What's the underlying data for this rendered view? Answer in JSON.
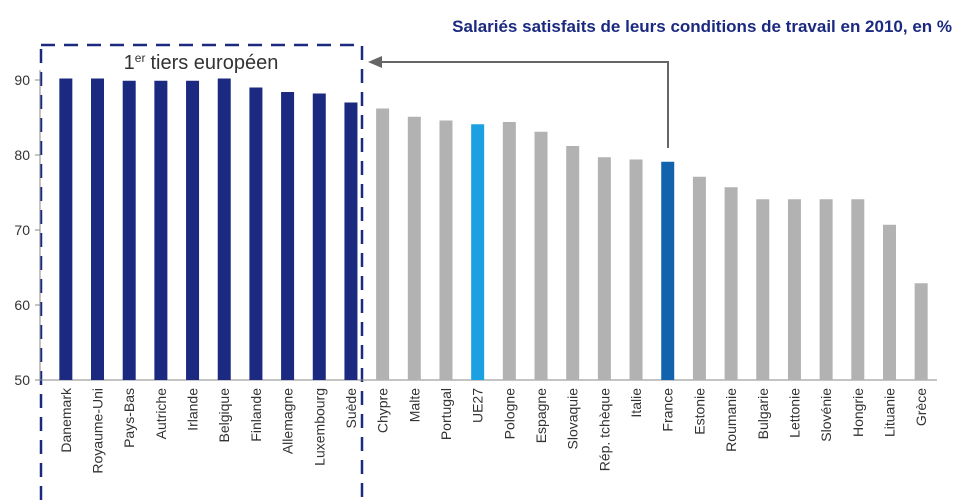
{
  "chart_data": {
    "type": "bar",
    "title": "Salariés satisfaits de leurs conditions de travail en 2010, en %",
    "annotation": {
      "main": "1",
      "superscript": "er",
      "rest": "tiers européen"
    },
    "categories": [
      "Danemark",
      "Royaume-Uni",
      "Pays-Bas",
      "Autriche",
      "Irlande",
      "Belgique",
      "Finlande",
      "Allemagne",
      "Luxembourg",
      "Suède",
      "Chypre",
      "Malte",
      "Portugal",
      "UE27",
      "Pologne",
      "Espagne",
      "Slovaquie",
      "Rép. tchèque",
      "Italie",
      "France",
      "Estonie",
      "Roumanie",
      "Bulgarie",
      "Lettonie",
      "Slovénie",
      "Hongrie",
      "Lituanie",
      "Grèce"
    ],
    "values": [
      90.2,
      90.2,
      89.9,
      89.9,
      89.9,
      90.2,
      89.0,
      88.4,
      88.2,
      87.0,
      86.2,
      85.1,
      84.6,
      84.1,
      84.4,
      83.1,
      81.2,
      79.7,
      79.4,
      79.1,
      77.1,
      75.7,
      74.1,
      74.1,
      74.1,
      74.1,
      70.7,
      62.9
    ],
    "colors": [
      "#1b2a80",
      "#1b2a80",
      "#1b2a80",
      "#1b2a80",
      "#1b2a80",
      "#1b2a80",
      "#1b2a80",
      "#1b2a80",
      "#1b2a80",
      "#1b2a80",
      "#b2b2b2",
      "#b2b2b2",
      "#b2b2b2",
      "#1ba1e2",
      "#b2b2b2",
      "#b2b2b2",
      "#b2b2b2",
      "#b2b2b2",
      "#b2b2b2",
      "#1263ad",
      "#b2b2b2",
      "#b2b2b2",
      "#b2b2b2",
      "#b2b2b2",
      "#b2b2b2",
      "#b2b2b2",
      "#b2b2b2",
      "#b2b2b2"
    ],
    "ylim": [
      50,
      90
    ],
    "yticks": [
      50,
      60,
      70,
      80,
      90
    ],
    "grid": false
  }
}
